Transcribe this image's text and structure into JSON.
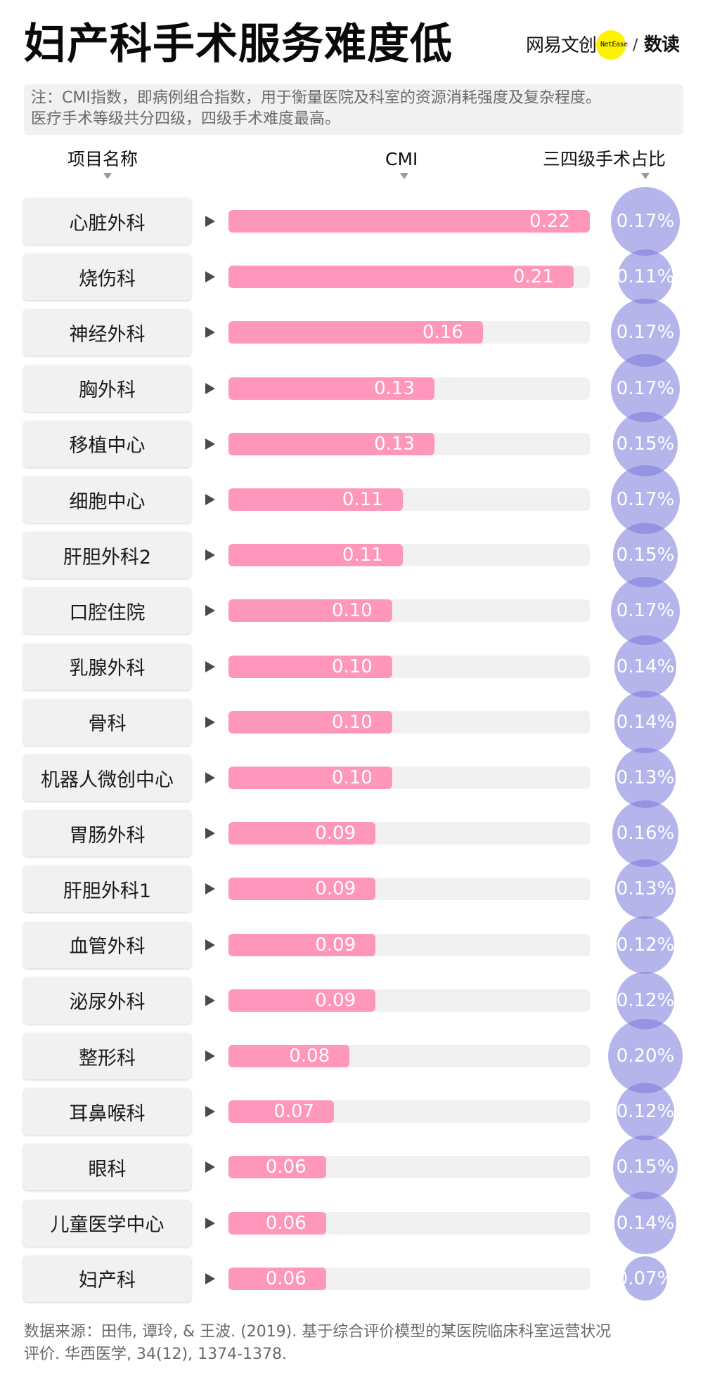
{
  "header": {
    "title": "妇产科手术服务难度低",
    "logo": {
      "brand_cn": "网易文创",
      "brand_en": "NetEase",
      "separator": "/",
      "column": "数读",
      "accent": "#fff200"
    }
  },
  "note": {
    "line1": "注：CMI指数，即病例组合指数，用于衡量医院及科室的资源消耗强度及复杂程度。",
    "line2": "医疗手术等级共分四级，四级手术难度最高。"
  },
  "columns": {
    "name": "项目名称",
    "cmi": "CMI",
    "ratio": "三四级手术占比"
  },
  "colors": {
    "bar": "#ff96bb",
    "track": "#f1f1f1",
    "bubble": "rgba(120,120,220,0.55)",
    "namebox": "#f1f1f1"
  },
  "rows": [
    {
      "name": "心脏外科",
      "cmi": "0.22",
      "bar_pct": 100,
      "ratio": "0.17%",
      "ratio_val": 0.17
    },
    {
      "name": "烧伤科",
      "cmi": "0.21",
      "bar_pct": 95.5,
      "ratio": "0.11%",
      "ratio_val": 0.11
    },
    {
      "name": "神经外科",
      "cmi": "0.16",
      "bar_pct": 70.4,
      "ratio": "0.17%",
      "ratio_val": 0.17
    },
    {
      "name": "胸外科",
      "cmi": "0.13",
      "bar_pct": 57,
      "ratio": "0.17%",
      "ratio_val": 0.17
    },
    {
      "name": "移植中心",
      "cmi": "0.13",
      "bar_pct": 57,
      "ratio": "0.15%",
      "ratio_val": 0.15
    },
    {
      "name": "细胞中心",
      "cmi": "0.11",
      "bar_pct": 48.2,
      "ratio": "0.17%",
      "ratio_val": 0.17
    },
    {
      "name": "肝胆外科2",
      "cmi": "0.11",
      "bar_pct": 48.2,
      "ratio": "0.15%",
      "ratio_val": 0.15
    },
    {
      "name": "口腔住院",
      "cmi": "0.10",
      "bar_pct": 45.3,
      "ratio": "0.17%",
      "ratio_val": 0.17
    },
    {
      "name": "乳腺外科",
      "cmi": "0.10",
      "bar_pct": 45.3,
      "ratio": "0.14%",
      "ratio_val": 0.14
    },
    {
      "name": "骨科",
      "cmi": "0.10",
      "bar_pct": 45.3,
      "ratio": "0.14%",
      "ratio_val": 0.14
    },
    {
      "name": "机器人微创中心",
      "cmi": "0.10",
      "bar_pct": 45.3,
      "ratio": "0.13%",
      "ratio_val": 0.13
    },
    {
      "name": "胃肠外科",
      "cmi": "0.09",
      "bar_pct": 40.7,
      "ratio": "0.16%",
      "ratio_val": 0.16
    },
    {
      "name": "肝胆外科1",
      "cmi": "0.09",
      "bar_pct": 40.7,
      "ratio": "0.13%",
      "ratio_val": 0.13
    },
    {
      "name": "血管外科",
      "cmi": "0.09",
      "bar_pct": 40.7,
      "ratio": "0.12%",
      "ratio_val": 0.12
    },
    {
      "name": "泌尿外科",
      "cmi": "0.09",
      "bar_pct": 40.7,
      "ratio": "0.12%",
      "ratio_val": 0.12
    },
    {
      "name": "整形科",
      "cmi": "0.08",
      "bar_pct": 33.5,
      "ratio": "0.20%",
      "ratio_val": 0.2
    },
    {
      "name": "耳鼻喉科",
      "cmi": "0.07",
      "bar_pct": 29.2,
      "ratio": "0.12%",
      "ratio_val": 0.12
    },
    {
      "name": "眼科",
      "cmi": "0.06",
      "bar_pct": 27,
      "ratio": "0.15%",
      "ratio_val": 0.15
    },
    {
      "name": "儿童医学中心",
      "cmi": "0.06",
      "bar_pct": 27,
      "ratio": "0.14%",
      "ratio_val": 0.14
    },
    {
      "name": "妇产科",
      "cmi": "0.06",
      "bar_pct": 27,
      "ratio": "0.07%",
      "ratio_val": 0.07
    }
  ],
  "source": {
    "line1": "数据来源：田伟, 谭玲, & 王波. (2019). 基于综合评价模型的某医院临床科室运营状况",
    "line2": "评价. 华西医学, 34(12), 1374-1378."
  },
  "chart_data": {
    "type": "bar",
    "title": "妇产科手术服务难度低",
    "subtitle": "注：CMI指数，即病例组合指数，用于衡量医院及科室的资源消耗强度及复杂程度。医疗手术等级共分四级，四级手术难度最高。",
    "xlabel": "CMI",
    "ylabel": "项目名称",
    "categories": [
      "心脏外科",
      "烧伤科",
      "神经外科",
      "胸外科",
      "移植中心",
      "细胞中心",
      "肝胆外科2",
      "口腔住院",
      "乳腺外科",
      "骨科",
      "机器人微创中心",
      "胃肠外科",
      "肝胆外科1",
      "血管外科",
      "泌尿外科",
      "整形科",
      "耳鼻喉科",
      "眼科",
      "儿童医学中心",
      "妇产科"
    ],
    "series": [
      {
        "name": "CMI",
        "type": "bar",
        "values": [
          0.22,
          0.21,
          0.16,
          0.13,
          0.13,
          0.11,
          0.11,
          0.1,
          0.1,
          0.1,
          0.1,
          0.09,
          0.09,
          0.09,
          0.09,
          0.08,
          0.07,
          0.06,
          0.06,
          0.06
        ]
      },
      {
        "name": "三四级手术占比 (%)",
        "type": "bubble",
        "values": [
          0.17,
          0.11,
          0.17,
          0.17,
          0.15,
          0.17,
          0.15,
          0.17,
          0.14,
          0.14,
          0.13,
          0.16,
          0.13,
          0.12,
          0.12,
          0.2,
          0.12,
          0.15,
          0.14,
          0.07
        ]
      }
    ],
    "orientation": "horizontal",
    "grid": false,
    "legend": "column headers at top",
    "source": "田伟, 谭玲, & 王波. (2019). 基于综合评价模型的某医院临床科室运营状况评价. 华西医学, 34(12), 1374-1378."
  }
}
